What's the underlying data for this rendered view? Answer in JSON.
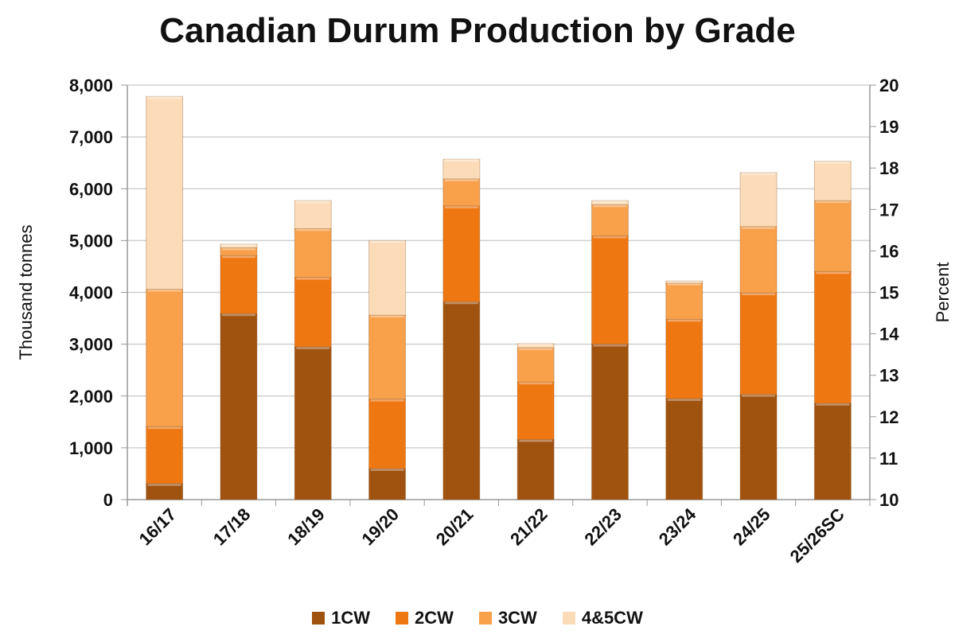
{
  "chart_data": {
    "type": "bar",
    "stacked": true,
    "title": "Canadian Durum Production by Grade",
    "xlabel": "",
    "ylabel": "Thousand tonnes",
    "y2label": "Percent",
    "ylim": [
      0,
      8000
    ],
    "y2lim": [
      10,
      20
    ],
    "yticks": [
      "0",
      "1,000",
      "2,000",
      "3,000",
      "4,000",
      "5,000",
      "6,000",
      "7,000",
      "8,000"
    ],
    "y2ticks": [
      "10",
      "11",
      "12",
      "13",
      "14",
      "15",
      "16",
      "17",
      "18",
      "19",
      "20"
    ],
    "grid": true,
    "legend": "bottom",
    "categories": [
      "16/17",
      "17/18",
      "18/19",
      "19/20",
      "20/21",
      "21/22",
      "22/23",
      "23/24",
      "24/25",
      "25/26SC"
    ],
    "series": [
      {
        "name": "1CW",
        "color": "#a0520f",
        "values": [
          310,
          3590,
          2950,
          600,
          3820,
          1160,
          3000,
          1950,
          2030,
          1860
        ]
      },
      {
        "name": "2CW",
        "color": "#ee7711",
        "values": [
          1100,
          1120,
          1340,
          1340,
          1850,
          1110,
          2090,
          1530,
          1960,
          2540
        ]
      },
      {
        "name": "3CW",
        "color": "#f8a04a",
        "values": [
          2650,
          150,
          940,
          1620,
          520,
          660,
          600,
          700,
          1280,
          1370
        ]
      },
      {
        "name": "4&5CW",
        "color": "#fcdcb8",
        "values": [
          3720,
          70,
          540,
          1440,
          380,
          80,
          80,
          40,
          1040,
          760
        ]
      }
    ]
  }
}
